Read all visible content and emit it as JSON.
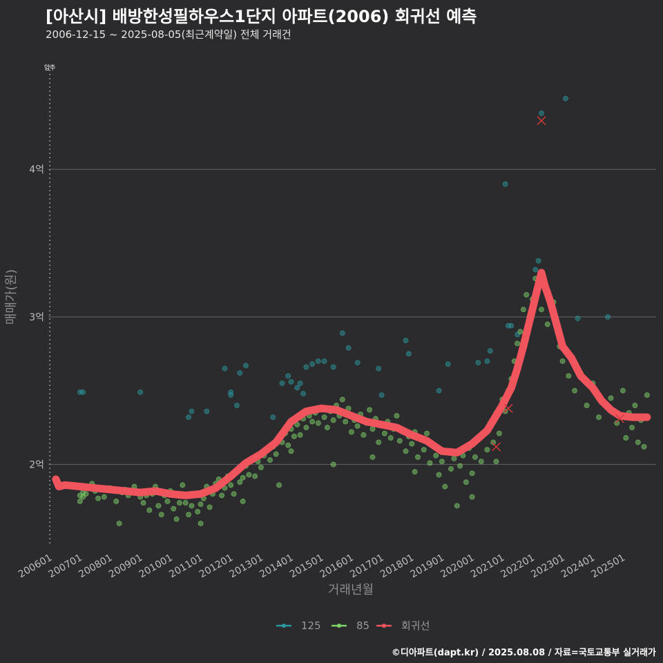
{
  "header": {
    "title": "[아산시] 배방한성필하우스1단지 아파트(2006) 회귀선 예측",
    "subtitle": "2006-12-15 ~ 2025-08-05(최근계약일) 전체 거래건"
  },
  "caption": "©디아파트(dapt.kr) / 2025.08.08 / 자료=국토교통부 실거래가",
  "chart_data": {
    "type": "scatter",
    "xlabel": "거래년월",
    "ylabel": "매매가(원)",
    "xlim": [
      2005.95,
      2026.1
    ],
    "ylim": [
      1.45,
      4.75
    ],
    "x_ticks": [
      {
        "label": "200601",
        "value": 2006.0
      },
      {
        "label": "200701",
        "value": 2007.0
      },
      {
        "label": "200801",
        "value": 2008.0
      },
      {
        "label": "200901",
        "value": 2009.0
      },
      {
        "label": "201001",
        "value": 2010.0
      },
      {
        "label": "201101",
        "value": 2011.0
      },
      {
        "label": "201201",
        "value": 2012.0
      },
      {
        "label": "201301",
        "value": 2013.0
      },
      {
        "label": "201401",
        "value": 2014.0
      },
      {
        "label": "201501",
        "value": 2015.0
      },
      {
        "label": "201601",
        "value": 2016.0
      },
      {
        "label": "201701",
        "value": 2017.0
      },
      {
        "label": "201801",
        "value": 2018.0
      },
      {
        "label": "201901",
        "value": 2019.0
      },
      {
        "label": "202001",
        "value": 2020.0
      },
      {
        "label": "202101",
        "value": 2021.0
      },
      {
        "label": "202201",
        "value": 2022.0
      },
      {
        "label": "202301",
        "value": 2023.0
      },
      {
        "label": "202401",
        "value": 2024.0
      },
      {
        "label": "202501",
        "value": 2025.0
      }
    ],
    "y_ticks": [
      {
        "label": "2억",
        "value": 2
      },
      {
        "label": "3억",
        "value": 3
      },
      {
        "label": "4억",
        "value": 4
      }
    ],
    "vline": {
      "x": 2006.0,
      "label": "입주"
    },
    "colors": {
      "s125": "#2b9aa0",
      "s85": "#7fd46a",
      "regression": "#f0555e",
      "outlier": "#d43a3a",
      "grid": "#5a595b"
    },
    "series": [
      {
        "name": "125",
        "color": "#2b9aa0",
        "points": [
          [
            2007.0,
            2.49
          ],
          [
            2007.1,
            2.49
          ],
          [
            2009.0,
            2.49
          ],
          [
            2010.7,
            2.36
          ],
          [
            2011.2,
            2.36
          ],
          [
            2011.8,
            2.65
          ],
          [
            2012.0,
            2.47
          ],
          [
            2012.0,
            2.49
          ],
          [
            2012.2,
            2.4
          ],
          [
            2012.3,
            2.62
          ],
          [
            2012.5,
            2.67
          ],
          [
            2013.7,
            2.55
          ],
          [
            2013.9,
            2.6
          ],
          [
            2014.0,
            2.56
          ],
          [
            2014.2,
            2.52
          ],
          [
            2014.3,
            2.55
          ],
          [
            2014.4,
            2.48
          ],
          [
            2014.5,
            2.66
          ],
          [
            2014.7,
            2.68
          ],
          [
            2014.9,
            2.7
          ],
          [
            2015.1,
            2.7
          ],
          [
            2015.4,
            2.66
          ],
          [
            2015.9,
            2.79
          ],
          [
            2016.9,
            2.65
          ],
          [
            2016.2,
            2.69
          ],
          [
            2017.0,
            2.47
          ],
          [
            2017.9,
            2.75
          ],
          [
            2017.8,
            2.84
          ],
          [
            2019.2,
            2.68
          ],
          [
            2020.2,
            2.69
          ],
          [
            2020.5,
            2.7
          ],
          [
            2020.6,
            2.77
          ],
          [
            2021.0,
            2.4
          ],
          [
            2021.5,
            2.88
          ],
          [
            2021.2,
            2.94
          ],
          [
            2021.3,
            2.94
          ],
          [
            2022.1,
            3.32
          ],
          [
            2022.2,
            3.38
          ],
          [
            2022.3,
            4.38
          ],
          [
            2023.5,
            2.99
          ],
          [
            2024.5,
            3.0
          ],
          [
            2023.1,
            4.48
          ],
          [
            2021.1,
            3.9
          ],
          [
            2010.6,
            2.32
          ],
          [
            2013.4,
            2.32
          ],
          [
            2015.7,
            2.89
          ],
          [
            2018.9,
            2.5
          ]
        ]
      },
      {
        "name": "85",
        "color": "#7fd46a",
        "points": [
          [
            2007.0,
            1.75
          ],
          [
            2007.0,
            1.79
          ],
          [
            2007.1,
            1.81
          ],
          [
            2007.1,
            1.78
          ],
          [
            2007.2,
            1.8
          ],
          [
            2007.4,
            1.87
          ],
          [
            2007.5,
            1.82
          ],
          [
            2007.6,
            1.77
          ],
          [
            2007.8,
            1.78
          ],
          [
            2008.0,
            1.84
          ],
          [
            2008.2,
            1.75
          ],
          [
            2008.3,
            1.6
          ],
          [
            2008.4,
            1.81
          ],
          [
            2008.5,
            1.83
          ],
          [
            2008.6,
            1.79
          ],
          [
            2008.8,
            1.85
          ],
          [
            2009.0,
            1.78
          ],
          [
            2009.1,
            1.74
          ],
          [
            2009.3,
            1.69
          ],
          [
            2009.4,
            1.8
          ],
          [
            2009.5,
            1.85
          ],
          [
            2009.6,
            1.72
          ],
          [
            2009.7,
            1.66
          ],
          [
            2009.8,
            1.79
          ],
          [
            2009.9,
            1.75
          ],
          [
            2010.0,
            1.82
          ],
          [
            2010.1,
            1.7
          ],
          [
            2010.2,
            1.63
          ],
          [
            2010.3,
            1.74
          ],
          [
            2010.4,
            1.86
          ],
          [
            2010.5,
            1.74
          ],
          [
            2010.6,
            1.66
          ],
          [
            2010.7,
            1.72
          ],
          [
            2010.8,
            1.79
          ],
          [
            2010.9,
            1.8
          ],
          [
            2011.0,
            1.73
          ],
          [
            2011.1,
            1.77
          ],
          [
            2011.2,
            1.85
          ],
          [
            2011.3,
            1.71
          ],
          [
            2011.4,
            1.8
          ],
          [
            2011.5,
            1.87
          ],
          [
            2011.6,
            1.9
          ],
          [
            2011.7,
            1.79
          ],
          [
            2011.8,
            1.84
          ],
          [
            2011.9,
            1.92
          ],
          [
            2012.0,
            1.86
          ],
          [
            2012.1,
            1.8
          ],
          [
            2012.2,
            1.95
          ],
          [
            2012.3,
            1.88
          ],
          [
            2012.4,
            1.91
          ],
          [
            2012.5,
            1.99
          ],
          [
            2012.6,
            1.93
          ],
          [
            2012.7,
            2.03
          ],
          [
            2012.8,
            1.92
          ],
          [
            2012.9,
            2.02
          ],
          [
            2013.0,
            1.98
          ],
          [
            2013.1,
            2.06
          ],
          [
            2013.2,
            2.1
          ],
          [
            2013.3,
            2.03
          ],
          [
            2013.4,
            2.12
          ],
          [
            2013.5,
            2.07
          ],
          [
            2013.6,
            2.18
          ],
          [
            2013.7,
            2.15
          ],
          [
            2013.8,
            2.21
          ],
          [
            2013.9,
            2.13
          ],
          [
            2014.0,
            2.24
          ],
          [
            2014.1,
            2.19
          ],
          [
            2014.2,
            2.27
          ],
          [
            2014.3,
            2.2
          ],
          [
            2014.4,
            2.31
          ],
          [
            2014.5,
            2.25
          ],
          [
            2014.6,
            2.33
          ],
          [
            2014.7,
            2.29
          ],
          [
            2014.8,
            2.35
          ],
          [
            2014.9,
            2.28
          ],
          [
            2015.0,
            2.38
          ],
          [
            2015.1,
            2.32
          ],
          [
            2015.2,
            2.25
          ],
          [
            2015.3,
            2.36
          ],
          [
            2015.4,
            2.3
          ],
          [
            2015.5,
            2.4
          ],
          [
            2015.6,
            2.33
          ],
          [
            2015.7,
            2.44
          ],
          [
            2015.8,
            2.29
          ],
          [
            2015.9,
            2.38
          ],
          [
            2016.0,
            2.22
          ],
          [
            2016.1,
            2.3
          ],
          [
            2016.2,
            2.26
          ],
          [
            2016.3,
            2.34
          ],
          [
            2016.4,
            2.2
          ],
          [
            2016.5,
            2.28
          ],
          [
            2016.6,
            2.37
          ],
          [
            2016.7,
            2.24
          ],
          [
            2016.8,
            2.31
          ],
          [
            2016.9,
            2.15
          ],
          [
            2017.0,
            2.27
          ],
          [
            2017.1,
            2.21
          ],
          [
            2017.2,
            2.29
          ],
          [
            2017.3,
            2.18
          ],
          [
            2017.4,
            2.24
          ],
          [
            2017.5,
            2.33
          ],
          [
            2017.6,
            2.16
          ],
          [
            2017.7,
            2.22
          ],
          [
            2017.8,
            2.09
          ],
          [
            2017.9,
            2.19
          ],
          [
            2018.0,
            2.14
          ],
          [
            2018.1,
            2.22
          ],
          [
            2018.2,
            2.05
          ],
          [
            2018.3,
            2.17
          ],
          [
            2018.4,
            2.1
          ],
          [
            2018.5,
            2.21
          ],
          [
            2018.6,
            2.01
          ],
          [
            2018.7,
            2.13
          ],
          [
            2018.8,
            2.06
          ],
          [
            2018.9,
            1.93
          ],
          [
            2019.0,
            2.02
          ],
          [
            2019.1,
            1.85
          ],
          [
            2019.2,
            2.09
          ],
          [
            2019.3,
            1.97
          ],
          [
            2019.4,
            2.04
          ],
          [
            2019.5,
            1.72
          ],
          [
            2019.6,
            1.99
          ],
          [
            2019.7,
            2.06
          ],
          [
            2019.8,
            1.88
          ],
          [
            2019.9,
            2.11
          ],
          [
            2020.0,
            1.94
          ],
          [
            2020.1,
            2.05
          ],
          [
            2020.2,
            2.17
          ],
          [
            2020.3,
            2.02
          ],
          [
            2020.4,
            2.22
          ],
          [
            2020.5,
            2.1
          ],
          [
            2020.6,
            2.28
          ],
          [
            2020.7,
            2.15
          ],
          [
            2020.8,
            2.35
          ],
          [
            2020.9,
            2.21
          ],
          [
            2021.0,
            2.44
          ],
          [
            2021.1,
            2.36
          ],
          [
            2021.2,
            2.5
          ],
          [
            2021.3,
            2.58
          ],
          [
            2021.4,
            2.7
          ],
          [
            2021.5,
            2.82
          ],
          [
            2021.6,
            2.9
          ],
          [
            2021.7,
            3.05
          ],
          [
            2021.8,
            3.15
          ],
          [
            2021.9,
            3.0
          ],
          [
            2022.0,
            3.12
          ],
          [
            2022.1,
            3.26
          ],
          [
            2022.3,
            3.05
          ],
          [
            2022.5,
            2.95
          ],
          [
            2022.7,
            3.1
          ],
          [
            2022.9,
            2.8
          ],
          [
            2023.0,
            2.7
          ],
          [
            2023.2,
            2.6
          ],
          [
            2023.4,
            2.5
          ],
          [
            2023.6,
            2.62
          ],
          [
            2023.8,
            2.4
          ],
          [
            2024.0,
            2.55
          ],
          [
            2024.2,
            2.32
          ],
          [
            2024.4,
            2.42
          ],
          [
            2024.6,
            2.45
          ],
          [
            2024.8,
            2.28
          ],
          [
            2025.0,
            2.5
          ],
          [
            2025.1,
            2.18
          ],
          [
            2025.2,
            2.35
          ],
          [
            2025.3,
            2.25
          ],
          [
            2025.4,
            2.4
          ],
          [
            2025.5,
            2.15
          ],
          [
            2025.6,
            2.3
          ],
          [
            2025.7,
            2.12
          ],
          [
            2025.8,
            2.47
          ],
          [
            2012.4,
            1.75
          ],
          [
            2011.0,
            1.6
          ],
          [
            2010.9,
            1.68
          ],
          [
            2009.2,
            1.79
          ],
          [
            2013.6,
            1.86
          ],
          [
            2014.0,
            2.09
          ],
          [
            2015.4,
            2.0
          ],
          [
            2016.7,
            2.05
          ],
          [
            2020.0,
            1.78
          ],
          [
            2020.8,
            2.02
          ],
          [
            2018.1,
            1.95
          ]
        ]
      }
    ],
    "regression": {
      "name": "회귀선",
      "color": "#f0555e",
      "points": [
        [
          2006.2,
          1.9
        ],
        [
          2006.3,
          1.85
        ],
        [
          2006.5,
          1.86
        ],
        [
          2007.0,
          1.85
        ],
        [
          2007.5,
          1.84
        ],
        [
          2008.0,
          1.83
        ],
        [
          2008.5,
          1.82
        ],
        [
          2009.0,
          1.81
        ],
        [
          2009.5,
          1.82
        ],
        [
          2010.0,
          1.8
        ],
        [
          2010.5,
          1.79
        ],
        [
          2011.0,
          1.8
        ],
        [
          2011.5,
          1.84
        ],
        [
          2012.0,
          1.92
        ],
        [
          2012.5,
          2.01
        ],
        [
          2013.0,
          2.07
        ],
        [
          2013.5,
          2.15
        ],
        [
          2014.0,
          2.29
        ],
        [
          2014.5,
          2.36
        ],
        [
          2015.0,
          2.38
        ],
        [
          2015.5,
          2.37
        ],
        [
          2016.0,
          2.33
        ],
        [
          2016.5,
          2.29
        ],
        [
          2017.0,
          2.27
        ],
        [
          2017.5,
          2.25
        ],
        [
          2018.0,
          2.2
        ],
        [
          2018.5,
          2.16
        ],
        [
          2019.0,
          2.09
        ],
        [
          2019.5,
          2.08
        ],
        [
          2020.0,
          2.14
        ],
        [
          2020.5,
          2.23
        ],
        [
          2021.0,
          2.4
        ],
        [
          2021.3,
          2.52
        ],
        [
          2021.5,
          2.65
        ],
        [
          2021.7,
          2.8
        ],
        [
          2022.0,
          3.05
        ],
        [
          2022.2,
          3.22
        ],
        [
          2022.3,
          3.3
        ],
        [
          2022.4,
          3.22
        ],
        [
          2022.6,
          3.1
        ],
        [
          2022.8,
          2.95
        ],
        [
          2023.0,
          2.8
        ],
        [
          2023.3,
          2.72
        ],
        [
          2023.6,
          2.6
        ],
        [
          2024.0,
          2.52
        ],
        [
          2024.3,
          2.43
        ],
        [
          2024.6,
          2.37
        ],
        [
          2024.9,
          2.33
        ],
        [
          2025.3,
          2.32
        ],
        [
          2025.8,
          2.32
        ]
      ]
    },
    "outliers": [
      [
        2022.3,
        4.33
      ],
      [
        2021.2,
        2.38
      ],
      [
        2020.8,
        2.12
      ],
      [
        2024.9,
        2.31
      ]
    ],
    "legend": [
      {
        "label": "125",
        "color": "#2b9aa0"
      },
      {
        "label": "85",
        "color": "#7fd46a"
      },
      {
        "label": "회귀선",
        "color": "#f0555e"
      }
    ]
  }
}
